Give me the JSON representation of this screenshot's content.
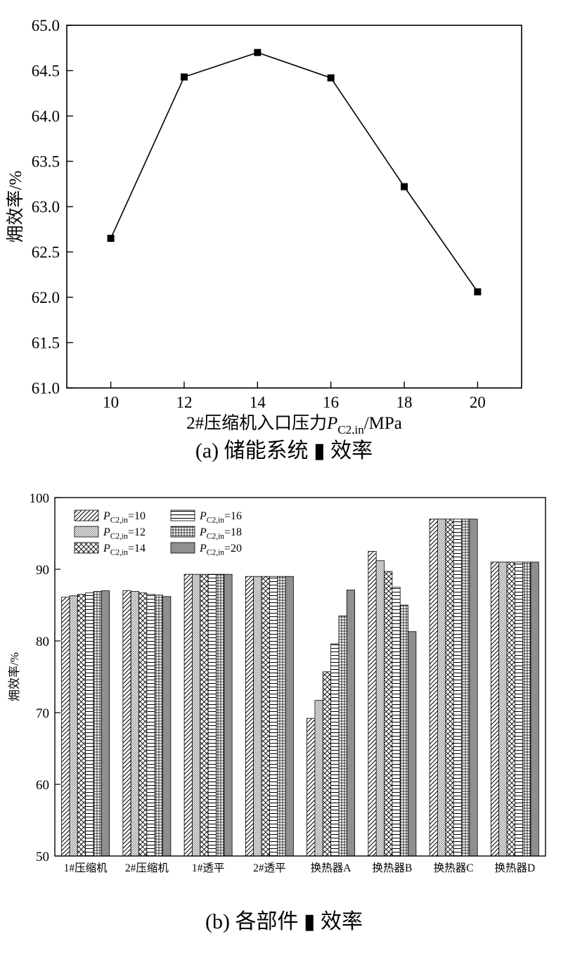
{
  "figure": {
    "caption_a": "(a) 储能系统 ▮ 效率",
    "caption_b": "(b) 各部件 ▮ 效率"
  },
  "chart_data": [
    {
      "type": "line",
      "title": "",
      "x": [
        10,
        12,
        14,
        16,
        18,
        20
      ],
      "y": [
        62.65,
        64.43,
        64.7,
        64.42,
        63.22,
        62.06
      ],
      "xlabel": {
        "pre": "2#压缩机入口压力",
        "var": "P",
        "sub": "C2,in",
        "post": "/MPa"
      },
      "ylabel": "㶲效率/%",
      "xlim": [
        8.8,
        21.2
      ],
      "ylim": [
        61.0,
        65.0
      ],
      "xticks": [
        10,
        12,
        14,
        16,
        18,
        20
      ],
      "yticks": [
        61.0,
        61.5,
        62.0,
        62.5,
        63.0,
        63.5,
        64.0,
        64.5,
        65.0
      ],
      "ytick_decimals": 1,
      "marker": "square",
      "line_color": "#000000",
      "grid": false
    },
    {
      "type": "bar",
      "title": "",
      "categories": [
        "1#压缩机",
        "2#压缩机",
        "1#透平",
        "2#透平",
        "换热器A",
        "换热器B",
        "换热器C",
        "换热器D"
      ],
      "series": [
        {
          "label": {
            "var": "P",
            "sub": "C2,in",
            "post": "=10"
          },
          "pattern": "diag",
          "values": [
            86.1,
            87.0,
            89.3,
            89.0,
            69.2,
            92.5,
            97.0,
            91.0
          ]
        },
        {
          "label": {
            "var": "P",
            "sub": "C2,in",
            "post": "=12"
          },
          "pattern": "dots",
          "values": [
            86.3,
            86.9,
            89.3,
            89.0,
            71.7,
            91.2,
            97.0,
            91.0
          ]
        },
        {
          "label": {
            "var": "P",
            "sub": "C2,in",
            "post": "=14"
          },
          "pattern": "cross",
          "values": [
            86.5,
            86.7,
            89.3,
            89.0,
            75.7,
            89.7,
            97.0,
            91.0
          ]
        },
        {
          "label": {
            "var": "P",
            "sub": "C2,in",
            "post": "=16"
          },
          "pattern": "horiz",
          "values": [
            86.7,
            86.5,
            89.3,
            89.0,
            79.6,
            87.5,
            97.0,
            91.0
          ]
        },
        {
          "label": {
            "var": "P",
            "sub": "C2,in",
            "post": "=18"
          },
          "pattern": "grid",
          "values": [
            86.9,
            86.4,
            89.3,
            89.0,
            83.5,
            85.0,
            97.0,
            91.0
          ]
        },
        {
          "label": {
            "var": "P",
            "sub": "C2,in",
            "post": "=20"
          },
          "pattern": "gray",
          "values": [
            87.0,
            86.2,
            89.3,
            89.0,
            87.1,
            81.3,
            97.0,
            91.0
          ]
        }
      ],
      "ylabel": "㶲效率/%",
      "ylim": [
        50,
        100
      ],
      "yticks": [
        50,
        60,
        70,
        80,
        90,
        100
      ],
      "legend_position": "top-left",
      "grid": false,
      "bar_gray_color": "#8f8f8f"
    }
  ]
}
